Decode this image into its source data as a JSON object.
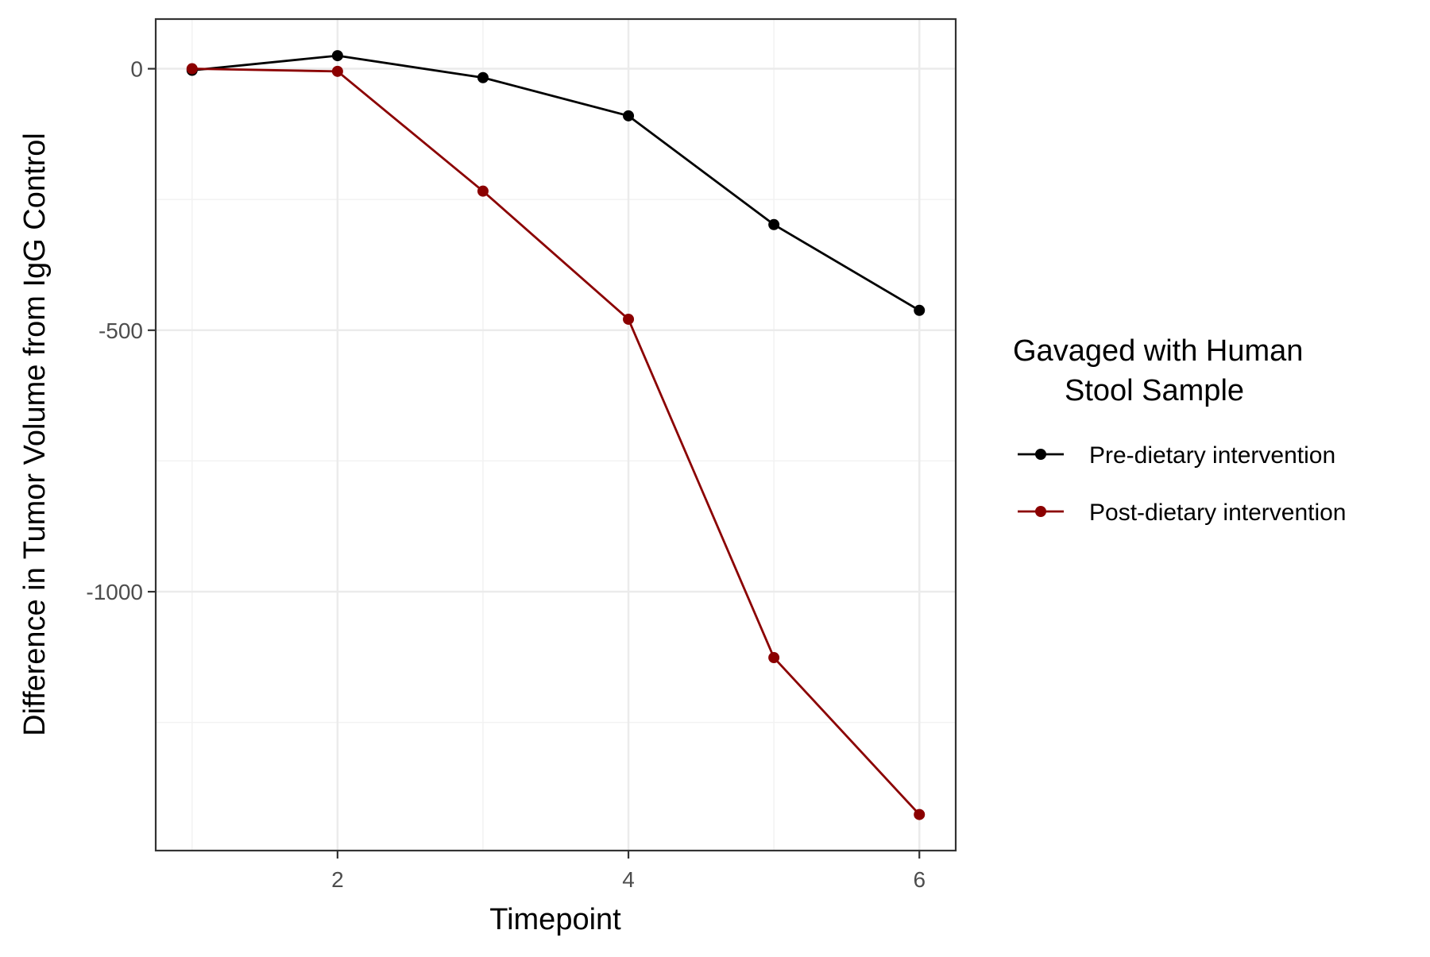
{
  "chart_data": {
    "type": "line",
    "xlabel": "Timepoint",
    "ylabel": "Difference in Tumor Volume from IgG Control",
    "x": [
      1,
      2,
      3,
      4,
      5,
      6
    ],
    "xlim": [
      0.75,
      6.25
    ],
    "ylim": [
      -1495,
      95
    ],
    "x_ticks": [
      2,
      4,
      6
    ],
    "x_tick_labels": [
      "2",
      "4",
      "6"
    ],
    "y_ticks": [
      0,
      -500,
      -1000
    ],
    "y_tick_labels": [
      "0",
      "-500",
      "-1000"
    ],
    "y_minor_ticks": [
      -250,
      -750,
      -1250
    ],
    "x_minor_ticks": [
      1,
      3,
      5
    ],
    "grid": true,
    "legend_position": "right",
    "legend_title_lines": [
      "Gavaged with Human",
      "Stool Sample"
    ],
    "series": [
      {
        "name": "Pre-dietary intervention",
        "color": "#000000",
        "values": [
          -3,
          25,
          -17,
          -90,
          -298,
          -462
        ]
      },
      {
        "name": "Post-dietary intervention",
        "color": "#8b0000",
        "values": [
          0,
          -5,
          -234,
          -479,
          -1126,
          -1426
        ]
      }
    ]
  }
}
